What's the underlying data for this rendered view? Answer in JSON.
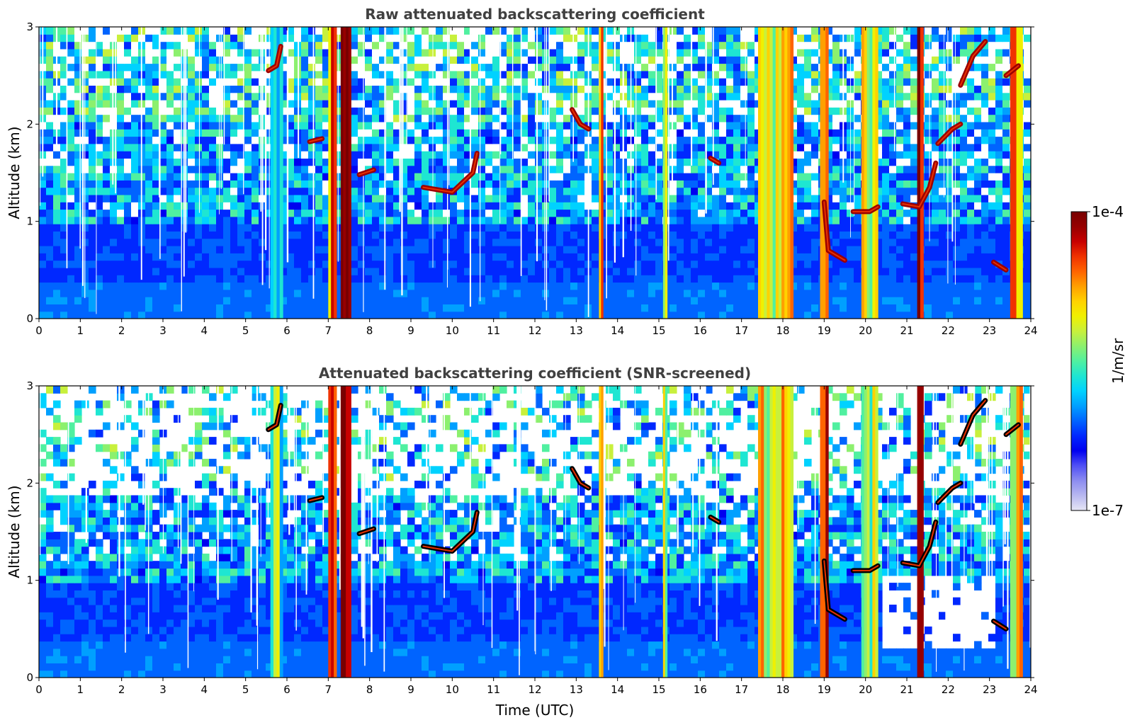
{
  "figure": {
    "xlabel": "Time (UTC)"
  },
  "colorbar": {
    "label": "1/m/sr",
    "max_label": "1e-4",
    "min_label": "1e-7",
    "colors": [
      "#e6e6f5",
      "#b8b8f0",
      "#8c8cf0",
      "#5050f5",
      "#0000f0",
      "#0028ff",
      "#0064ff",
      "#00a0ff",
      "#00d2ff",
      "#1ee6d2",
      "#50f0a0",
      "#8cf06e",
      "#c8f03c",
      "#f0f000",
      "#ffd200",
      "#ffa000",
      "#ff6400",
      "#f03200",
      "#c80000",
      "#960000",
      "#780000"
    ]
  },
  "chart_data": [
    {
      "type": "heatmap",
      "title": "Raw attenuated backscattering coefficient",
      "xlabel": "",
      "ylabel": "Altitude (km)",
      "xlim": [
        0,
        24
      ],
      "ylim": [
        0,
        3
      ],
      "xticks": [
        "0",
        "1",
        "2",
        "3",
        "4",
        "5",
        "6",
        "7",
        "8",
        "9",
        "10",
        "11",
        "12",
        "13",
        "14",
        "15",
        "16",
        "17",
        "18",
        "19",
        "20",
        "21",
        "22",
        "23",
        "24"
      ],
      "yticks": [
        "0",
        "1",
        "2",
        "3"
      ],
      "colorscale": "log, 1e-7 to 1e-4 1/m/sr, jet",
      "features": {
        "vertical_columns": [
          {
            "t_start": 5.6,
            "t_end": 5.9,
            "level": 0.5
          },
          {
            "t_start": 7.0,
            "t_end": 7.2,
            "level": 0.8
          },
          {
            "t_start": 7.3,
            "t_end": 7.55,
            "level": 1.0
          },
          {
            "t_start": 13.55,
            "t_end": 13.65,
            "level": 0.7
          },
          {
            "t_start": 15.1,
            "t_end": 15.2,
            "level": 0.6
          },
          {
            "t_start": 17.4,
            "t_end": 18.25,
            "level": 0.65
          },
          {
            "t_start": 18.9,
            "t_end": 19.1,
            "level": 0.8
          },
          {
            "t_start": 19.9,
            "t_end": 20.3,
            "level": 0.6
          },
          {
            "t_start": 21.25,
            "t_end": 21.4,
            "level": 0.95
          },
          {
            "t_start": 23.5,
            "t_end": 23.8,
            "level": 0.7
          }
        ],
        "cloud_segments": [
          {
            "points": [
              [
                5.55,
                2.55
              ],
              [
                5.75,
                2.6
              ],
              [
                5.85,
                2.8
              ]
            ]
          },
          {
            "points": [
              [
                6.55,
                1.82
              ],
              [
                6.85,
                1.85
              ]
            ]
          },
          {
            "points": [
              [
                7.75,
                1.48
              ],
              [
                8.1,
                1.53
              ]
            ]
          },
          {
            "points": [
              [
                9.3,
                1.35
              ],
              [
                10.0,
                1.3
              ],
              [
                10.5,
                1.5
              ],
              [
                10.6,
                1.7
              ]
            ]
          },
          {
            "points": [
              [
                12.9,
                2.15
              ],
              [
                13.1,
                2.0
              ],
              [
                13.3,
                1.95
              ]
            ]
          },
          {
            "points": [
              [
                16.25,
                1.65
              ],
              [
                16.45,
                1.6
              ]
            ]
          },
          {
            "points": [
              [
                19.0,
                1.2
              ],
              [
                19.1,
                0.7
              ],
              [
                19.3,
                0.65
              ],
              [
                19.5,
                0.6
              ]
            ]
          },
          {
            "points": [
              [
                19.7,
                1.1
              ],
              [
                20.1,
                1.1
              ],
              [
                20.3,
                1.15
              ]
            ]
          },
          {
            "points": [
              [
                20.9,
                1.18
              ],
              [
                21.3,
                1.15
              ],
              [
                21.55,
                1.35
              ],
              [
                21.7,
                1.6
              ]
            ]
          },
          {
            "points": [
              [
                21.75,
                1.8
              ],
              [
                22.1,
                1.95
              ],
              [
                22.3,
                2.0
              ]
            ]
          },
          {
            "points": [
              [
                22.3,
                2.4
              ],
              [
                22.6,
                2.7
              ],
              [
                22.9,
                2.85
              ]
            ]
          },
          {
            "points": [
              [
                23.1,
                0.58
              ],
              [
                23.4,
                0.5
              ]
            ]
          },
          {
            "points": [
              [
                23.4,
                2.5
              ],
              [
                23.7,
                2.6
              ]
            ]
          }
        ]
      }
    },
    {
      "type": "heatmap",
      "title": "Attenuated backscattering coefficient (SNR-screened)",
      "xlabel": "Time (UTC)",
      "ylabel": "Altitude (km)",
      "xlim": [
        0,
        24
      ],
      "ylim": [
        0,
        3
      ],
      "xticks": [
        "0",
        "1",
        "2",
        "3",
        "4",
        "5",
        "6",
        "7",
        "8",
        "9",
        "10",
        "11",
        "12",
        "13",
        "14",
        "15",
        "16",
        "17",
        "18",
        "19",
        "20",
        "21",
        "22",
        "23",
        "24"
      ],
      "yticks": [
        "0",
        "1",
        "2",
        "3"
      ],
      "colorscale": "log, 1e-7 to 1e-4 1/m/sr, jet",
      "features": {
        "vertical_columns": [
          {
            "t_start": 5.6,
            "t_end": 5.9,
            "level": 0.5
          },
          {
            "t_start": 7.0,
            "t_end": 7.2,
            "level": 0.8
          },
          {
            "t_start": 7.3,
            "t_end": 7.55,
            "level": 1.0
          },
          {
            "t_start": 13.55,
            "t_end": 13.65,
            "level": 0.7
          },
          {
            "t_start": 15.1,
            "t_end": 15.2,
            "level": 0.6
          },
          {
            "t_start": 17.4,
            "t_end": 18.25,
            "level": 0.65
          },
          {
            "t_start": 18.9,
            "t_end": 19.1,
            "level": 0.8
          },
          {
            "t_start": 19.9,
            "t_end": 20.3,
            "level": 0.6
          },
          {
            "t_start": 21.25,
            "t_end": 21.4,
            "level": 0.95
          },
          {
            "t_start": 23.5,
            "t_end": 23.8,
            "level": 0.7
          }
        ],
        "cloud_segments": [
          {
            "points": [
              [
                5.55,
                2.55
              ],
              [
                5.75,
                2.6
              ],
              [
                5.85,
                2.8
              ]
            ]
          },
          {
            "points": [
              [
                6.55,
                1.82
              ],
              [
                6.85,
                1.85
              ]
            ]
          },
          {
            "points": [
              [
                7.75,
                1.48
              ],
              [
                8.1,
                1.53
              ]
            ]
          },
          {
            "points": [
              [
                9.3,
                1.35
              ],
              [
                10.0,
                1.3
              ],
              [
                10.5,
                1.5
              ],
              [
                10.6,
                1.7
              ]
            ]
          },
          {
            "points": [
              [
                12.9,
                2.15
              ],
              [
                13.1,
                2.0
              ],
              [
                13.3,
                1.95
              ]
            ]
          },
          {
            "points": [
              [
                16.25,
                1.65
              ],
              [
                16.45,
                1.6
              ]
            ]
          },
          {
            "points": [
              [
                19.0,
                1.2
              ],
              [
                19.1,
                0.7
              ],
              [
                19.3,
                0.65
              ],
              [
                19.5,
                0.6
              ]
            ]
          },
          {
            "points": [
              [
                19.7,
                1.1
              ],
              [
                20.1,
                1.1
              ],
              [
                20.3,
                1.15
              ]
            ]
          },
          {
            "points": [
              [
                20.9,
                1.18
              ],
              [
                21.3,
                1.15
              ],
              [
                21.55,
                1.35
              ],
              [
                21.7,
                1.6
              ]
            ]
          },
          {
            "points": [
              [
                21.75,
                1.8
              ],
              [
                22.1,
                1.95
              ],
              [
                22.3,
                2.0
              ]
            ]
          },
          {
            "points": [
              [
                22.3,
                2.4
              ],
              [
                22.6,
                2.7
              ],
              [
                22.9,
                2.85
              ]
            ]
          },
          {
            "points": [
              [
                23.1,
                0.58
              ],
              [
                23.4,
                0.5
              ]
            ]
          },
          {
            "points": [
              [
                23.4,
                2.5
              ],
              [
                23.7,
                2.6
              ]
            ]
          }
        ]
      }
    }
  ]
}
